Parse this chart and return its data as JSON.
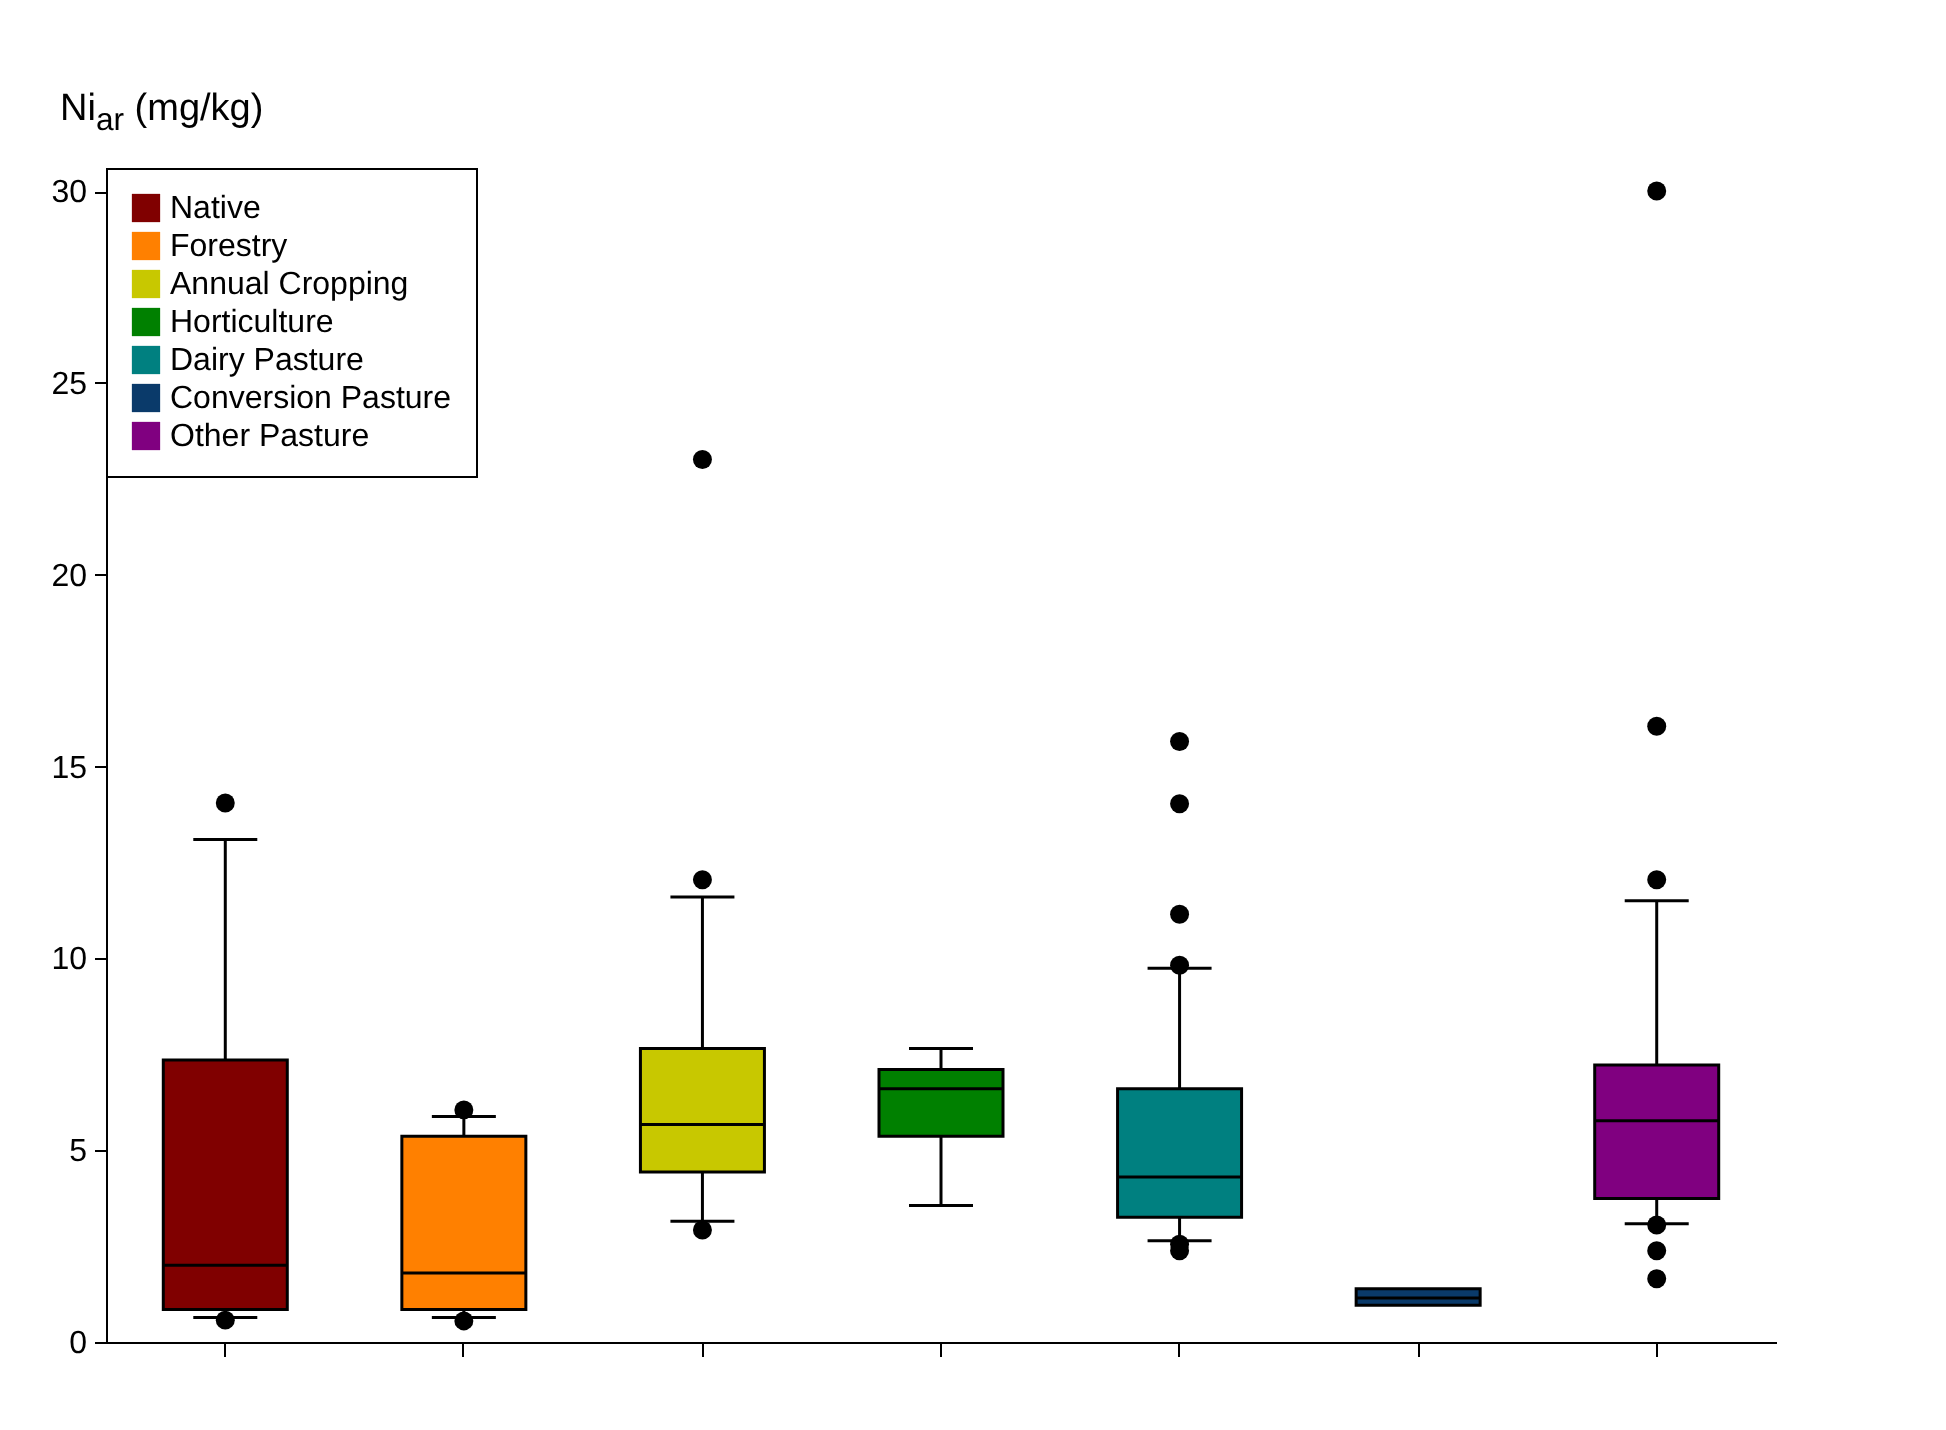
{
  "chart_data": {
    "type": "box",
    "ylabel": "Ni$_{ar}$ (mg/kg)",
    "categories": [
      null,
      null,
      null,
      null,
      null,
      null,
      null
    ],
    "ylim": [
      0,
      30.6
    ],
    "yticks": [
      0,
      5,
      10,
      15,
      20,
      25,
      30
    ],
    "tick_labels": "y",
    "legend": "top left",
    "grid": false,
    "series": [
      {
        "name": "Native",
        "color": "#800000",
        "boxes": [
          {
            "low": 0.64,
            "q1": 0.85,
            "median": 2.0,
            "q3": 7.35,
            "high": 13.1,
            "outliers": [
              14.05,
              0.57
            ]
          },
          null,
          null,
          null,
          null,
          null,
          null
        ]
      },
      {
        "name": "Forestry",
        "color": "#ff8000",
        "boxes": [
          null,
          {
            "low": 0.64,
            "q1": 0.85,
            "median": 1.8,
            "q3": 5.36,
            "high": 5.88,
            "outliers": [
              6.05,
              0.55
            ]
          },
          null,
          null,
          null,
          null,
          null
        ]
      },
      {
        "name": "Annual Cropping",
        "color": "#c8c800",
        "boxes": [
          null,
          null,
          {
            "low": 3.15,
            "q1": 4.43,
            "median": 5.67,
            "q3": 7.65,
            "high": 11.6,
            "outliers": [
              23.0,
              12.05,
              2.92
            ]
          },
          null,
          null,
          null,
          null
        ]
      },
      {
        "name": "Horticulture",
        "color": "#008000",
        "boxes": [
          null,
          null,
          null,
          {
            "low": 3.56,
            "q1": 5.36,
            "median": 6.6,
            "q3": 7.1,
            "high": 7.65
          },
          null,
          null,
          null
        ]
      },
      {
        "name": "Dairy Pasture",
        "color": "#008080",
        "boxes": [
          null,
          null,
          null,
          null,
          {
            "low": 2.64,
            "q1": 3.25,
            "median": 4.3,
            "q3": 6.6,
            "high": 9.74,
            "outliers": [
              15.65,
              14.03,
              11.15,
              9.82,
              2.55,
              2.38
            ]
          },
          null,
          null
        ]
      },
      {
        "name": "Conversion Pasture",
        "color": "#0a3a6a",
        "boxes": [
          null,
          null,
          null,
          null,
          null,
          {
            "low": 0.96,
            "q1": 0.96,
            "median": 1.15,
            "q3": 1.39,
            "high": 1.39
          },
          null
        ]
      },
      {
        "name": "Other Pasture",
        "color": "#800080",
        "boxes": [
          null,
          null,
          null,
          null,
          null,
          null,
          {
            "low": 3.08,
            "q1": 3.74,
            "median": 5.77,
            "q3": 7.22,
            "high": 11.5,
            "outliers": [
              30.0,
              16.05,
              12.05,
              3.05,
              2.38,
              1.65
            ]
          }
        ]
      }
    ]
  }
}
